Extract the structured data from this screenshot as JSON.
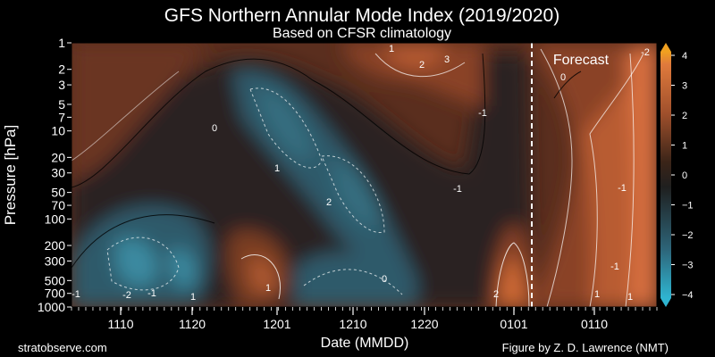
{
  "chart_data": {
    "type": "heatmap",
    "title": "GFS Northern Annular Mode Index (2019/2020)",
    "subtitle": "Based on CFSR climatology",
    "xlabel": "Date (MMDD)",
    "ylabel": "Pressure [hPa]",
    "x_ticks": [
      "1110",
      "1120",
      "1201",
      "1210",
      "1220",
      "0101",
      "0110"
    ],
    "y_ticks": [
      1,
      2,
      3,
      5,
      7,
      10,
      20,
      30,
      50,
      70,
      100,
      200,
      300,
      500,
      700,
      1000
    ],
    "y_scale": "log",
    "y_range": [
      1000,
      1
    ],
    "forecast_label": "Forecast",
    "forecast_start": "0104",
    "colorbar": {
      "ticks": [
        "4",
        "3",
        "2",
        "1",
        "0",
        "−1",
        "−2",
        "−3",
        "−4"
      ],
      "range": [
        -4,
        4
      ],
      "colors": [
        "#2fb5d1",
        "#2d6478",
        "#1f1f1f",
        "#77402a",
        "#d8703e",
        "#f0a020"
      ]
    },
    "contour_labels": [
      "0",
      "1",
      "2",
      "3",
      "-1",
      "-2",
      "0",
      "1",
      "2",
      "-1",
      "-1",
      "-1",
      "0",
      "1",
      "2",
      "1",
      "1",
      "-1",
      "-1",
      "-2",
      "1"
    ],
    "credit_left": "stratobserve.com",
    "credit_right": "Figure by Z. D. Lawrence (NMT)"
  }
}
